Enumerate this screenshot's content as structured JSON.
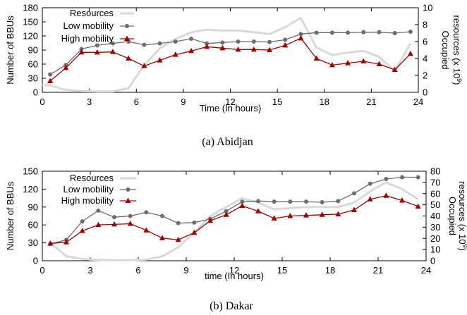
{
  "chart_data": [
    {
      "type": "line",
      "caption": "(a)  Abidjan",
      "xlabel": "Time (In hours)",
      "ylabel": "Number of BBUs",
      "y2label_line1": "Occupied",
      "y2label_line2": "resources (x 10",
      "y2label_exp": "9",
      "y2label_close": ")",
      "xlim": [
        0,
        24
      ],
      "ylim": [
        0,
        180
      ],
      "y2lim": [
        0,
        10
      ],
      "xticks": [
        0,
        3,
        6,
        9,
        12,
        15,
        18,
        21,
        24
      ],
      "yticks": [
        0,
        30,
        60,
        90,
        120,
        150,
        180
      ],
      "y2ticks": [
        0,
        2,
        4,
        6,
        8,
        10
      ],
      "legend_position": "top-left",
      "series": [
        {
          "name": "Resources",
          "axis": "y2",
          "color": "#d9d9d9",
          "marker": "none",
          "x": [
            0,
            0.5,
            1.5,
            2.5,
            3.5,
            4.5,
            5.5,
            6.5,
            7.5,
            8.5,
            9.5,
            10.5,
            11.5,
            12.5,
            13.5,
            14.5,
            15.5,
            16.5,
            17.5,
            18.5,
            19.5,
            20.5,
            21.5,
            22.5,
            23.5
          ],
          "values": [
            0.9,
            0.8,
            0.3,
            0.15,
            0.1,
            0.1,
            0.5,
            3.2,
            5.2,
            6.3,
            7.1,
            7.4,
            7.3,
            7.3,
            7.1,
            6.9,
            7.7,
            8.8,
            5.3,
            4.4,
            4.7,
            4.9,
            4.2,
            2.5,
            5.8
          ]
        },
        {
          "name": "Low mobility",
          "axis": "y",
          "color": "#6d6d6d",
          "marker": "circle",
          "x": [
            0.5,
            1.5,
            2.5,
            3.5,
            4.5,
            5.5,
            6.5,
            7.5,
            8.5,
            9.5,
            10.5,
            11.5,
            12.5,
            13.5,
            14.5,
            15.5,
            16.5,
            17.5,
            18.5,
            19.5,
            20.5,
            21.5,
            22.5,
            23.5
          ],
          "values": [
            38,
            58,
            92,
            100,
            104,
            108,
            101,
            104,
            108,
            114,
            104,
            106,
            108,
            108,
            107,
            112,
            124,
            127,
            127,
            127,
            128,
            128,
            126,
            129
          ]
        },
        {
          "name": "High mobility",
          "axis": "y",
          "color": "#a00000",
          "marker": "triangle",
          "x": [
            0.5,
            1.5,
            2.5,
            3.5,
            4.5,
            5.5,
            6.5,
            7.5,
            8.5,
            9.5,
            10.5,
            11.5,
            12.5,
            13.5,
            14.5,
            15.5,
            16.5,
            17.5,
            18.5,
            19.5,
            20.5,
            21.5,
            22.5,
            23.5
          ],
          "values": [
            24,
            52,
            85,
            85,
            86,
            72,
            56,
            68,
            80,
            88,
            97,
            94,
            91,
            91,
            90,
            100,
            115,
            72,
            58,
            62,
            66,
            60,
            48,
            82
          ]
        }
      ]
    },
    {
      "type": "line",
      "caption": "(b)  Dakar",
      "xlabel": "time (In hours)",
      "ylabel": "Number of BBUs",
      "y2label_line1": "Occupied",
      "y2label_line2": "resources (x 10",
      "y2label_exp": "9",
      "y2label_close": ")",
      "xlim": [
        0,
        24
      ],
      "ylim": [
        0,
        150
      ],
      "y2lim": [
        0,
        80
      ],
      "xticks": [
        0,
        3,
        6,
        9,
        12,
        15,
        18,
        21,
        24
      ],
      "yticks": [
        0,
        30,
        60,
        90,
        120,
        150
      ],
      "y2ticks": [
        0,
        10,
        20,
        30,
        40,
        50,
        60,
        70,
        80
      ],
      "legend_position": "top-left",
      "series": [
        {
          "name": "Resources",
          "axis": "y2",
          "color": "#d9d9d9",
          "marker": "none",
          "x": [
            0.5,
            1.5,
            2.5,
            3.5,
            4.5,
            5.5,
            6.5,
            7.5,
            8.5,
            9.5,
            10.5,
            11.5,
            12.5,
            13.5,
            14.5,
            15.5,
            16.5,
            17.5,
            18.5,
            19.5,
            20.5,
            21.5,
            22.5,
            23.5
          ],
          "values": [
            16,
            4,
            1.5,
            0.7,
            0.5,
            0.5,
            1,
            4,
            12,
            25,
            40,
            48,
            56,
            52,
            46,
            47,
            48,
            48,
            48,
            52,
            62,
            70,
            64,
            55
          ]
        },
        {
          "name": "Low mobility",
          "axis": "y",
          "color": "#6d6d6d",
          "marker": "circle",
          "x": [
            0.5,
            1.5,
            2.5,
            3.5,
            4.5,
            5.5,
            6.5,
            7.5,
            8.5,
            9.5,
            10.5,
            11.5,
            12.5,
            13.5,
            14.5,
            15.5,
            16.5,
            17.5,
            18.5,
            19.5,
            20.5,
            21.5,
            22.5,
            23.5
          ],
          "values": [
            28,
            35,
            66,
            84,
            73,
            75,
            81,
            75,
            63,
            64,
            70,
            83,
            99,
            100,
            99,
            99,
            99,
            98,
            100,
            113,
            129,
            137,
            140,
            140
          ]
        },
        {
          "name": "High mobility",
          "axis": "y",
          "color": "#a00000",
          "marker": "triangle",
          "x": [
            0.5,
            1.5,
            2.5,
            3.5,
            4.5,
            5.5,
            6.5,
            7.5,
            8.5,
            9.5,
            10.5,
            11.5,
            12.5,
            13.5,
            14.5,
            15.5,
            16.5,
            17.5,
            18.5,
            19.5,
            20.5,
            21.5,
            22.5,
            23.5
          ],
          "values": [
            29,
            31,
            50,
            60,
            61,
            62,
            51,
            38,
            35,
            47,
            67,
            77,
            92,
            83,
            71,
            75,
            76,
            77,
            78,
            85,
            103,
            109,
            101,
            91
          ]
        }
      ]
    }
  ]
}
